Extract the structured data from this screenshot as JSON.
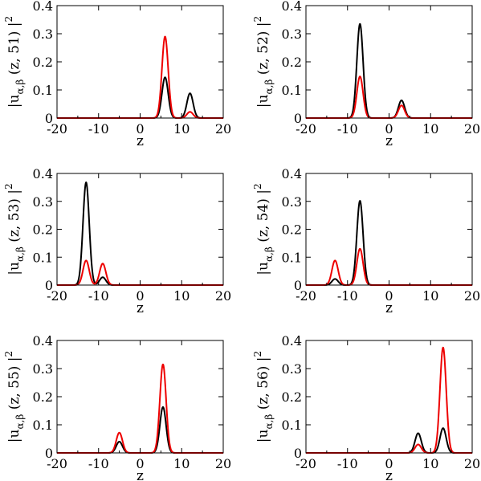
{
  "chart_data": [
    {
      "type": "line",
      "xlabel": "z",
      "ylabel": {
        "prefix": "|u",
        "subscript": "α,β",
        "middle": "(z, 51)",
        "suffix": "|",
        "power": "2"
      },
      "xlim": [
        -20,
        20
      ],
      "ylim": [
        0,
        0.4
      ],
      "xticks": [
        -20,
        -10,
        0,
        10,
        20
      ],
      "yticks": [
        0,
        0.1,
        0.2,
        0.3,
        0.4
      ],
      "ytick_labels": [
        "0",
        "0.1",
        "0.2",
        "0.3",
        "0.4"
      ],
      "grid": false,
      "series": [
        {
          "color": "#000000",
          "peaks": [
            {
              "center": 6,
              "amp": 0.145,
              "width": 0.75
            },
            {
              "center": 12,
              "amp": 0.088,
              "width": 0.75
            }
          ]
        },
        {
          "color": "#ee0000",
          "peaks": [
            {
              "center": 6,
              "amp": 0.29,
              "width": 0.75
            },
            {
              "center": 12,
              "amp": 0.022,
              "width": 0.75
            }
          ]
        }
      ]
    },
    {
      "type": "line",
      "xlabel": "z",
      "ylabel": {
        "prefix": "|u",
        "subscript": "α,β",
        "middle": "(z, 52)",
        "suffix": "|",
        "power": "2"
      },
      "xlim": [
        -20,
        20
      ],
      "ylim": [
        0,
        0.4
      ],
      "xticks": [
        -20,
        -10,
        0,
        10,
        20
      ],
      "yticks": [
        0,
        0.1,
        0.2,
        0.3,
        0.4
      ],
      "ytick_labels": [
        "0",
        "0.1",
        "0.2",
        "0.3",
        "0.4"
      ],
      "grid": false,
      "series": [
        {
          "color": "#000000",
          "peaks": [
            {
              "center": -7,
              "amp": 0.335,
              "width": 0.75
            },
            {
              "center": 3,
              "amp": 0.063,
              "width": 0.75
            }
          ]
        },
        {
          "color": "#ee0000",
          "peaks": [
            {
              "center": -7,
              "amp": 0.148,
              "width": 0.75
            },
            {
              "center": 3,
              "amp": 0.045,
              "width": 0.75
            }
          ]
        }
      ]
    },
    {
      "type": "line",
      "xlabel": "z",
      "ylabel": {
        "prefix": "|u",
        "subscript": "α,β",
        "middle": "(z, 53)",
        "suffix": "|",
        "power": "2"
      },
      "xlim": [
        -20,
        20
      ],
      "ylim": [
        0,
        0.4
      ],
      "xticks": [
        -20,
        -10,
        0,
        10,
        20
      ],
      "yticks": [
        0,
        0.1,
        0.2,
        0.3,
        0.4
      ],
      "ytick_labels": [
        "0",
        "0.1",
        "0.2",
        "0.3",
        "0.4"
      ],
      "grid": false,
      "series": [
        {
          "color": "#000000",
          "peaks": [
            {
              "center": -13,
              "amp": 0.368,
              "width": 0.75
            },
            {
              "center": -9,
              "amp": 0.028,
              "width": 0.75
            }
          ]
        },
        {
          "color": "#ee0000",
          "peaks": [
            {
              "center": -13,
              "amp": 0.088,
              "width": 0.75
            },
            {
              "center": -9,
              "amp": 0.077,
              "width": 0.75
            }
          ]
        }
      ]
    },
    {
      "type": "line",
      "xlabel": "z",
      "ylabel": {
        "prefix": "|u",
        "subscript": "α,β",
        "middle": "(z, 54)",
        "suffix": "|",
        "power": "2"
      },
      "xlim": [
        -20,
        20
      ],
      "ylim": [
        0,
        0.4
      ],
      "xticks": [
        -20,
        -10,
        0,
        10,
        20
      ],
      "yticks": [
        0,
        0.1,
        0.2,
        0.3,
        0.4
      ],
      "ytick_labels": [
        "0",
        "0.1",
        "0.2",
        "0.3",
        "0.4"
      ],
      "grid": false,
      "series": [
        {
          "color": "#000000",
          "peaks": [
            {
              "center": -7,
              "amp": 0.302,
              "width": 0.75
            },
            {
              "center": -13,
              "amp": 0.022,
              "width": 0.75
            }
          ]
        },
        {
          "color": "#ee0000",
          "peaks": [
            {
              "center": -7,
              "amp": 0.13,
              "width": 0.75
            },
            {
              "center": -13,
              "amp": 0.088,
              "width": 0.75
            }
          ]
        }
      ]
    },
    {
      "type": "line",
      "xlabel": "z",
      "ylabel": {
        "prefix": "|u",
        "subscript": "α,β",
        "middle": "(z, 55)",
        "suffix": "|",
        "power": "2"
      },
      "xlim": [
        -20,
        20
      ],
      "ylim": [
        0,
        0.4
      ],
      "xticks": [
        -20,
        -10,
        0,
        10,
        20
      ],
      "yticks": [
        0,
        0.1,
        0.2,
        0.3,
        0.4
      ],
      "ytick_labels": [
        "0",
        "0.1",
        "0.2",
        "0.3",
        "0.4"
      ],
      "grid": false,
      "series": [
        {
          "color": "#000000",
          "peaks": [
            {
              "center": 5.5,
              "amp": 0.163,
              "width": 0.75
            },
            {
              "center": -5,
              "amp": 0.04,
              "width": 0.75
            }
          ]
        },
        {
          "color": "#ee0000",
          "peaks": [
            {
              "center": 5.5,
              "amp": 0.315,
              "width": 0.75
            },
            {
              "center": -5,
              "amp": 0.072,
              "width": 0.75
            }
          ]
        }
      ]
    },
    {
      "type": "line",
      "xlabel": "z",
      "ylabel": {
        "prefix": "|u",
        "subscript": "α,β",
        "middle": "(z, 56)",
        "suffix": "|",
        "power": "2"
      },
      "xlim": [
        -20,
        20
      ],
      "ylim": [
        0,
        0.4
      ],
      "xticks": [
        -20,
        -10,
        0,
        10,
        20
      ],
      "yticks": [
        0,
        0.1,
        0.2,
        0.3,
        0.4
      ],
      "ytick_labels": [
        "0",
        "0.1",
        "0.2",
        "0.3",
        "0.4"
      ],
      "grid": false,
      "series": [
        {
          "color": "#000000",
          "peaks": [
            {
              "center": 13,
              "amp": 0.088,
              "width": 0.75
            },
            {
              "center": 7,
              "amp": 0.07,
              "width": 0.75
            }
          ]
        },
        {
          "color": "#ee0000",
          "peaks": [
            {
              "center": 13,
              "amp": 0.375,
              "width": 0.75
            },
            {
              "center": 7,
              "amp": 0.03,
              "width": 0.75
            }
          ]
        }
      ]
    }
  ]
}
